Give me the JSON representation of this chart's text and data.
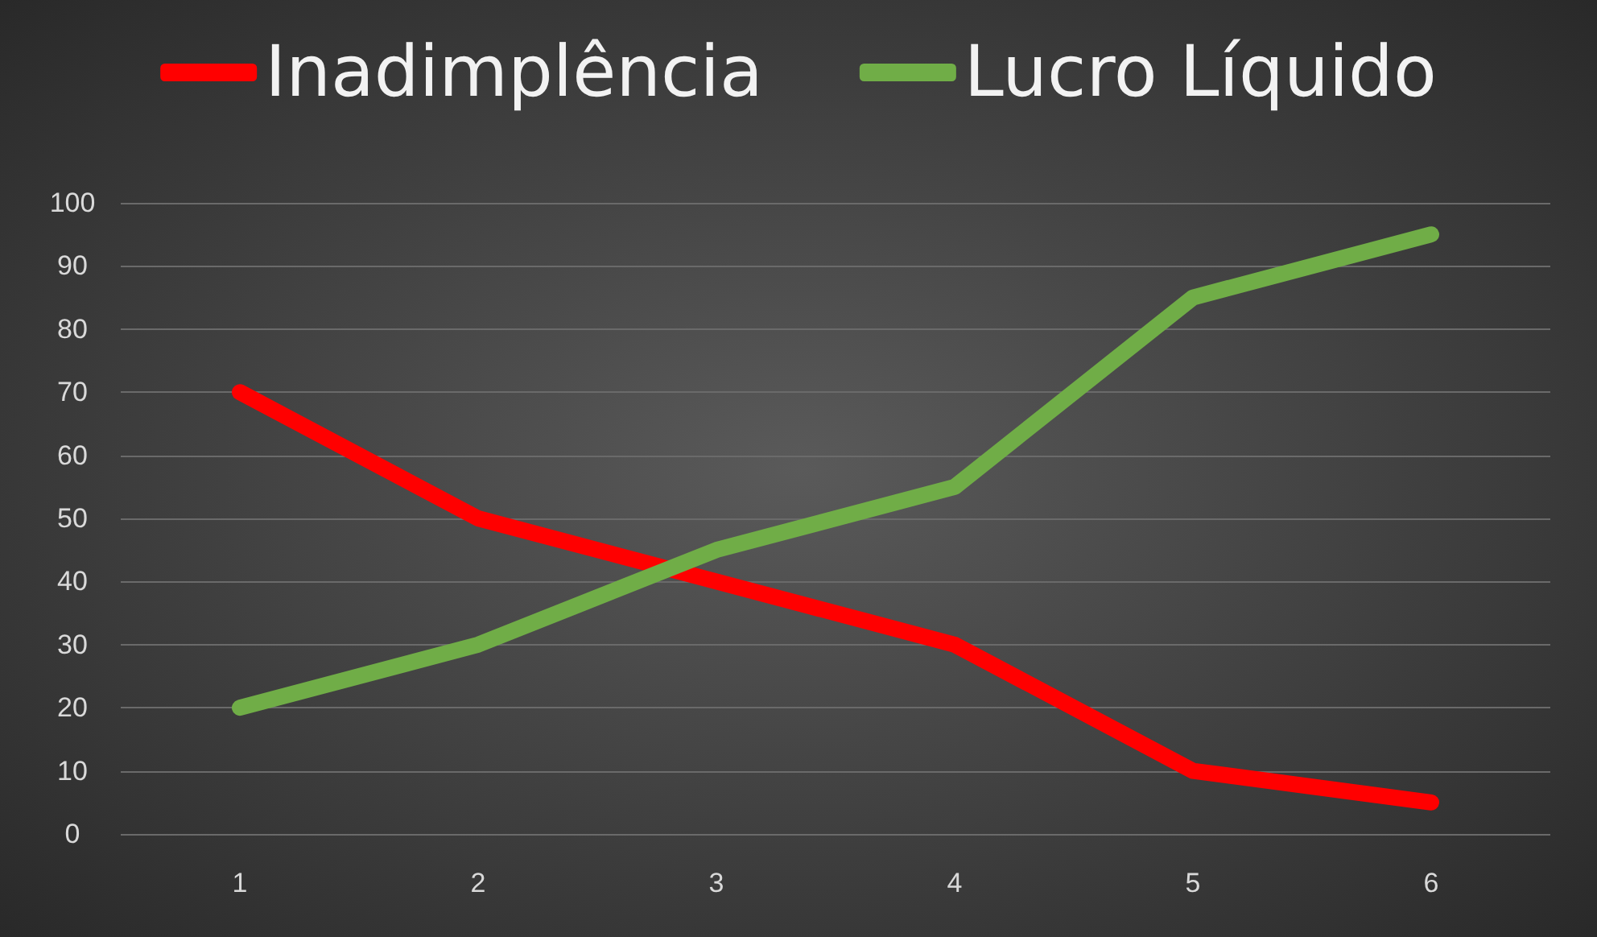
{
  "chart_data": {
    "type": "line",
    "categories": [
      "1",
      "2",
      "3",
      "4",
      "5",
      "6"
    ],
    "series": [
      {
        "name": "Inadimplência",
        "color": "#ff0000",
        "values": [
          70,
          50,
          40,
          30,
          10,
          5
        ]
      },
      {
        "name": "Lucro Líquido",
        "color": "#70ad47",
        "values": [
          20,
          30,
          45,
          55,
          85,
          95
        ]
      }
    ],
    "ylim": [
      0,
      100
    ],
    "yticks": [
      0,
      10,
      20,
      30,
      40,
      50,
      60,
      70,
      80,
      90,
      100
    ],
    "grid": "y",
    "legend": "top",
    "marker": "none",
    "line_style": "solid"
  }
}
